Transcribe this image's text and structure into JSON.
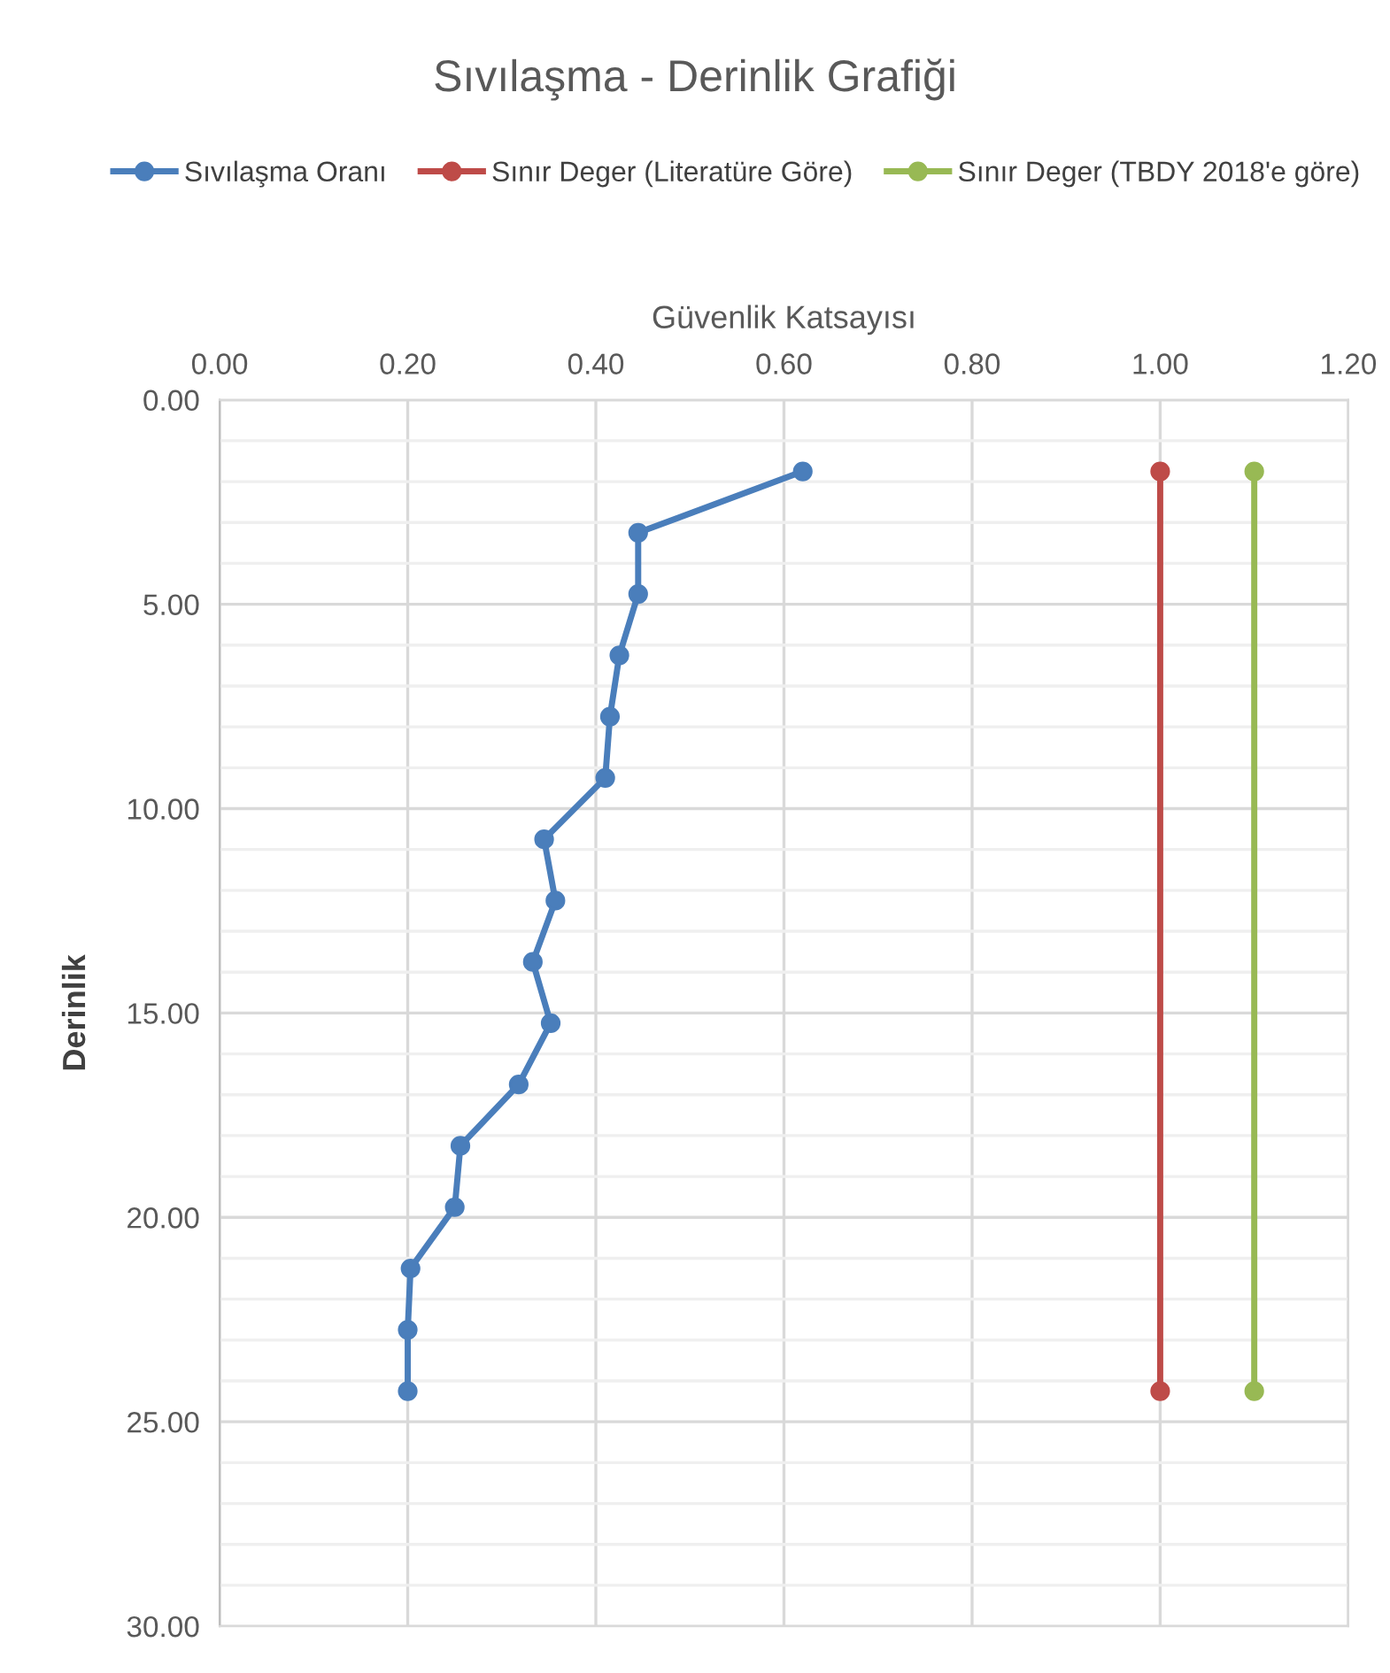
{
  "chart_data": {
    "type": "line",
    "title": "Sıvılaşma - Derinlik Grafiği",
    "xlabel": "Güvenlik Katsayısı",
    "ylabel": "Derinlik",
    "series": [
      {
        "name": "Sıvılaşma Oranı",
        "color": "#4a7ebb",
        "x": [
          0.62,
          0.445,
          0.445,
          0.425,
          0.415,
          0.41,
          0.345,
          0.357,
          0.333,
          0.352,
          0.318,
          0.256,
          0.25,
          0.203,
          0.2,
          0.2
        ],
        "values": [
          1.75,
          3.25,
          4.75,
          6.25,
          7.75,
          9.25,
          10.75,
          12.25,
          13.75,
          15.25,
          16.75,
          18.25,
          19.75,
          21.25,
          22.75,
          24.25
        ]
      },
      {
        "name": "Sınır Deger (Literatüre Göre)",
        "color": "#be4b48",
        "x": [
          1.0,
          1.0
        ],
        "values": [
          1.75,
          24.25
        ]
      },
      {
        "name": "Sınır Deger (TBDY 2018'e göre)",
        "color": "#98b954",
        "x": [
          1.1,
          1.1
        ],
        "values": [
          1.75,
          24.25
        ]
      }
    ],
    "xlim": [
      0,
      1.2
    ],
    "xticks": [
      {
        "value": 0,
        "label": "0.00"
      },
      {
        "value": 0.2,
        "label": "0.20"
      },
      {
        "value": 0.4,
        "label": "0.40"
      },
      {
        "value": 0.6,
        "label": "0.60"
      },
      {
        "value": 0.8,
        "label": "0.80"
      },
      {
        "value": 1.0,
        "label": "1.00"
      },
      {
        "value": 1.2,
        "label": "1.20"
      }
    ],
    "ylim": [
      30,
      0
    ],
    "yticks": [
      {
        "value": 0,
        "label": "0.00"
      },
      {
        "value": 1,
        "label": null
      },
      {
        "value": 2,
        "label": null
      },
      {
        "value": 3,
        "label": null
      },
      {
        "value": 4,
        "label": null
      },
      {
        "value": 5,
        "label": "5.00"
      },
      {
        "value": 6,
        "label": null
      },
      {
        "value": 7,
        "label": null
      },
      {
        "value": 8,
        "label": null
      },
      {
        "value": 9,
        "label": null
      },
      {
        "value": 10,
        "label": "10.00"
      },
      {
        "value": 11,
        "label": null
      },
      {
        "value": 12,
        "label": null
      },
      {
        "value": 13,
        "label": null
      },
      {
        "value": 14,
        "label": null
      },
      {
        "value": 15,
        "label": "15.00"
      },
      {
        "value": 16,
        "label": null
      },
      {
        "value": 17,
        "label": null
      },
      {
        "value": 18,
        "label": null
      },
      {
        "value": 19,
        "label": null
      },
      {
        "value": 20,
        "label": "20.00"
      },
      {
        "value": 21,
        "label": null
      },
      {
        "value": 22,
        "label": null
      },
      {
        "value": 23,
        "label": null
      },
      {
        "value": 24,
        "label": null
      },
      {
        "value": 25,
        "label": "25.00"
      },
      {
        "value": 26,
        "label": null
      },
      {
        "value": 27,
        "label": null
      },
      {
        "value": 28,
        "label": null
      },
      {
        "value": 29,
        "label": null
      },
      {
        "value": 30,
        "label": "30.00"
      }
    ],
    "grid": true,
    "legend": "top",
    "marker": "circle",
    "line_style": "solid"
  }
}
